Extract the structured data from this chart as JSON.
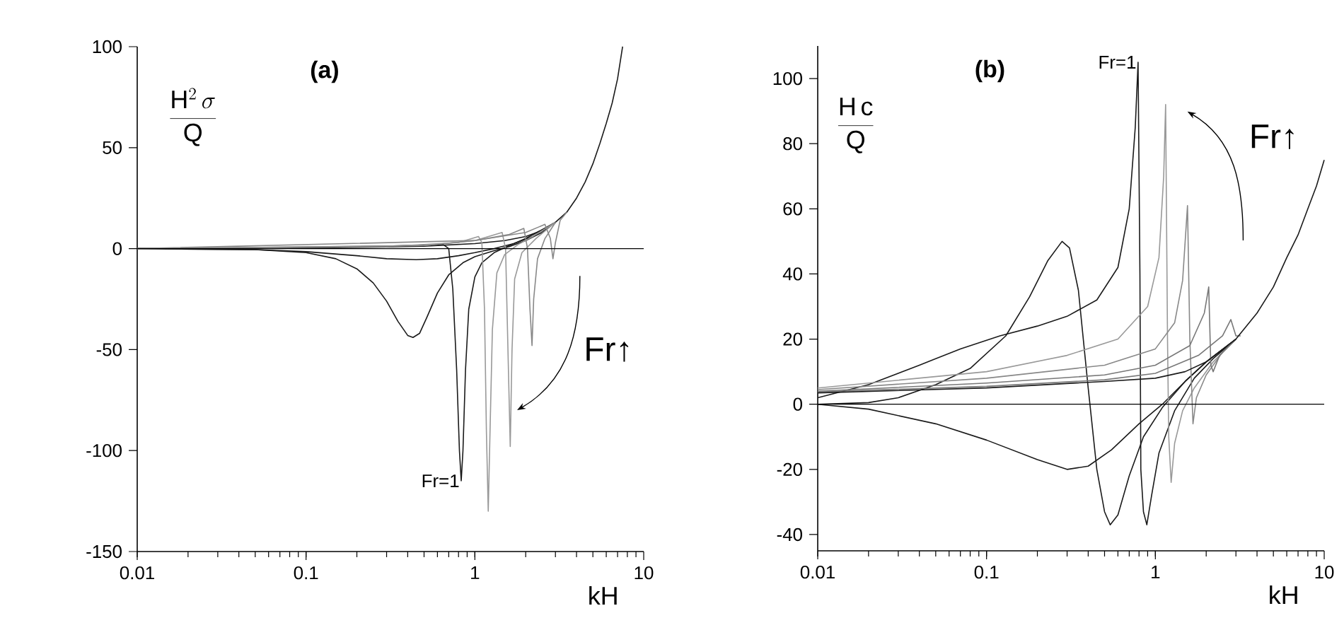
{
  "chart_data": [
    {
      "type": "line",
      "title": "(a)",
      "ylabel": "\\frac{\\mathrm{H}^{2}\\,\\sigma}{\\mathrm{Q}}",
      "xlabel": "kH",
      "log": "x",
      "xlim": [
        0.01,
        10
      ],
      "xticks": [
        0.01,
        0.1,
        1,
        10
      ],
      "ylim": [
        -150,
        100
      ],
      "yticks": [
        -150,
        -100,
        -50,
        0,
        50,
        100
      ],
      "ref_lines": [
        {
          "axis": "y",
          "value": 0,
          "color": "#000000"
        }
      ],
      "annotations": [
        {
          "text": "Fr=1",
          "x": 0.83,
          "y": -115
        },
        "Fr↑"
      ],
      "series": [
        {
          "color": "#1a1a1a",
          "x": [
            0.01,
            0.1,
            0.3,
            0.5,
            1,
            1.5,
            2,
            2.5,
            3,
            3.5,
            4,
            4.5,
            5,
            5.5,
            6,
            6.5,
            7,
            7.5
          ],
          "values": [
            0,
            0.3,
            0.8,
            1.2,
            2.5,
            4,
            6,
            9,
            13,
            18,
            25,
            33,
            42,
            52,
            62,
            72,
            84,
            100
          ]
        },
        {
          "color": "#1a1a1a",
          "x": [
            0.01,
            0.05,
            0.1,
            0.15,
            0.2,
            0.25,
            0.3,
            0.35,
            0.4,
            0.43,
            0.47,
            0.52,
            0.6,
            0.7,
            0.85,
            1,
            1.3,
            1.6,
            2,
            2.5,
            3
          ],
          "values": [
            0,
            -0.5,
            -2,
            -5,
            -10,
            -17,
            -26,
            -36,
            -43,
            -44,
            -42,
            -34,
            -22,
            -13,
            -7,
            -4,
            -1,
            1,
            4,
            8,
            13
          ]
        },
        {
          "color": "#1a1a1a",
          "x": [
            0.01,
            0.05,
            0.1,
            0.2,
            0.3,
            0.45,
            0.6,
            0.8,
            1,
            1.3,
            1.7,
            2.2,
            3
          ],
          "values": [
            0,
            -0.5,
            -1.5,
            -3.5,
            -5,
            -5.5,
            -5,
            -3.5,
            -2,
            0,
            2.5,
            6,
            13
          ]
        },
        {
          "color": "#1a1a1a",
          "x": [
            0.01,
            0.1,
            0.3,
            0.5,
            0.65,
            0.7,
            0.74,
            0.78,
            0.81,
            0.83,
            0.85,
            0.88,
            0.92,
            1,
            1.1,
            1.3,
            1.6,
            2,
            3
          ],
          "values": [
            0,
            0.5,
            1.2,
            1.8,
            2,
            0,
            -20,
            -60,
            -100,
            -115,
            -100,
            -60,
            -30,
            -14,
            -7,
            -2,
            1.5,
            5,
            13
          ]
        },
        {
          "color": "#999999",
          "x": [
            0.01,
            0.3,
            0.8,
            1.05,
            1.1,
            1.14,
            1.17,
            1.2,
            1.23,
            1.27,
            1.35,
            1.5,
            1.8,
            2.2,
            3
          ],
          "values": [
            0,
            1,
            3,
            6,
            3,
            -30,
            -90,
            -130,
            -90,
            -40,
            -12,
            -3,
            2,
            6,
            13
          ]
        },
        {
          "color": "#999999",
          "x": [
            0.01,
            0.5,
            1,
            1.45,
            1.52,
            1.57,
            1.62,
            1.66,
            1.72,
            1.9,
            2.3,
            3
          ],
          "values": [
            0,
            1.5,
            4,
            8,
            0,
            -50,
            -98,
            -50,
            -15,
            -2,
            5,
            13
          ]
        },
        {
          "color": "#888888",
          "x": [
            0.01,
            0.5,
            1,
            1.6,
            1.95,
            2.05,
            2.12,
            2.18,
            2.23,
            2.35,
            2.6,
            3
          ],
          "values": [
            0,
            1.5,
            4,
            7,
            10,
            0,
            -30,
            -48,
            -25,
            -5,
            5,
            13
          ]
        },
        {
          "color": "#888888",
          "x": [
            0.01,
            1,
            2,
            2.6,
            2.8,
            2.9,
            3,
            3.2,
            3.5
          ],
          "values": [
            0,
            4,
            8,
            12,
            5,
            -5,
            3,
            14,
            18
          ]
        }
      ]
    },
    {
      "type": "line",
      "title": "(b)",
      "ylabel": "\\frac{\\mathrm{H\\,c}}{\\mathrm{Q}}",
      "xlabel": "kH",
      "log": "x",
      "xlim": [
        0.01,
        10
      ],
      "xticks": [
        0.01,
        0.1,
        1,
        10
      ],
      "ylim": [
        -45,
        110
      ],
      "yticks": [
        -40,
        -20,
        0,
        20,
        40,
        60,
        80,
        100
      ],
      "ref_lines": [
        {
          "axis": "y",
          "value": 0,
          "color": "#000000"
        }
      ],
      "annotations": [
        {
          "text": "Fr=1",
          "x": 0.79,
          "y": 105
        },
        "Fr↑"
      ],
      "series": [
        {
          "color": "#1a1a1a",
          "x": [
            0.01,
            0.02,
            0.05,
            0.1,
            0.2,
            0.3,
            0.4,
            0.55,
            0.8,
            1.1,
            1.5,
            2,
            3
          ],
          "values": [
            0,
            -1.5,
            -6,
            -11,
            -17,
            -20,
            -19,
            -14,
            -6,
            0,
            7,
            13,
            20
          ]
        },
        {
          "color": "#1a1a1a",
          "x": [
            0.01,
            0.02,
            0.04,
            0.07,
            0.12,
            0.2,
            0.3,
            0.45,
            0.6,
            0.7,
            0.76,
            0.79,
            0.81,
            0.82,
            0.85,
            0.89,
            0.95,
            1.05,
            1.3,
            1.7,
            2.2,
            3
          ],
          "values": [
            2,
            6,
            12,
            17,
            21,
            24,
            27,
            32,
            42,
            60,
            85,
            105,
            40,
            -20,
            -33,
            -37,
            -28,
            -15,
            -2,
            8,
            14,
            20
          ]
        },
        {
          "color": "#1a1a1a",
          "x": [
            0.01,
            0.02,
            0.03,
            0.05,
            0.08,
            0.13,
            0.18,
            0.23,
            0.28,
            0.31,
            0.35,
            0.4,
            0.45,
            0.5,
            0.54,
            0.6,
            0.7,
            0.85,
            1.1,
            1.5,
            2,
            3
          ],
          "values": [
            0,
            0.5,
            2,
            6,
            11,
            21,
            33,
            44,
            50,
            48,
            35,
            5,
            -20,
            -33,
            -37,
            -34,
            -22,
            -10,
            -1,
            7,
            13,
            20
          ]
        },
        {
          "color": "#999999",
          "x": [
            0.01,
            0.1,
            0.3,
            0.6,
            0.9,
            1.05,
            1.12,
            1.15,
            1.18,
            1.2,
            1.24,
            1.3,
            1.45,
            1.7,
            2.2,
            3
          ],
          "values": [
            5,
            10,
            15,
            20,
            30,
            45,
            70,
            92,
            20,
            -10,
            -24,
            -12,
            -2,
            5,
            13,
            20
          ]
        },
        {
          "color": "#888888",
          "x": [
            0.01,
            0.1,
            0.5,
            1,
            1.3,
            1.45,
            1.55,
            1.6,
            1.67,
            1.75,
            2,
            2.5,
            3
          ],
          "values": [
            4.5,
            8,
            12,
            17,
            25,
            38,
            61,
            20,
            -6,
            2,
            9,
            16,
            20
          ]
        },
        {
          "color": "#777777",
          "x": [
            0.01,
            0.1,
            0.5,
            1,
            1.6,
            1.95,
            2.07,
            2.13,
            2.2,
            2.4,
            3
          ],
          "values": [
            4,
            6.5,
            9,
            12,
            18,
            28,
            36,
            12,
            10,
            15,
            20
          ]
        },
        {
          "color": "#777777",
          "x": [
            0.01,
            0.1,
            0.5,
            1,
            1.8,
            2.5,
            2.8,
            3,
            3.2
          ],
          "values": [
            3.8,
            5.5,
            7.5,
            9.5,
            15,
            21,
            26,
            21,
            21
          ]
        },
        {
          "color": "#1a1a1a",
          "x": [
            0.01,
            0.1,
            0.5,
            1,
            1.5,
            2,
            3,
            4,
            5,
            6,
            7,
            8,
            9,
            10
          ],
          "values": [
            3.5,
            5,
            7,
            8,
            10,
            13,
            20,
            28,
            36,
            45,
            52,
            60,
            67,
            75
          ]
        }
      ]
    }
  ]
}
